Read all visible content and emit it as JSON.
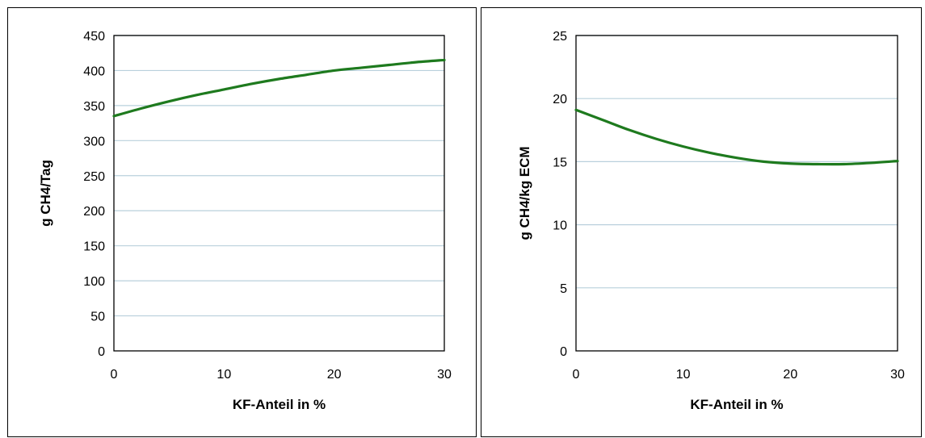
{
  "chart_data": [
    {
      "type": "line",
      "title": "",
      "xlabel": "KF-Anteil in %",
      "ylabel": "g CH4/Tag",
      "xlim": [
        0,
        30
      ],
      "ylim": [
        0,
        450
      ],
      "xticks": [
        "0",
        "10",
        "20",
        "30"
      ],
      "yticks": [
        "0",
        "50",
        "100",
        "150",
        "200",
        "250",
        "300",
        "350",
        "400",
        "450"
      ],
      "grid": "horizontal",
      "legend": "none",
      "series": [
        {
          "color": "#1e7a1e",
          "x": [
            0,
            2.5,
            5,
            7.5,
            10,
            12.5,
            15,
            17.5,
            20,
            22.5,
            25,
            27.5,
            30
          ],
          "y": [
            335,
            346,
            356,
            365,
            373,
            381,
            388,
            394,
            400,
            404,
            408,
            412,
            415
          ]
        }
      ]
    },
    {
      "type": "line",
      "title": "",
      "xlabel": "KF-Anteil in %",
      "ylabel": "g CH4/kg ECM",
      "xlim": [
        0,
        30
      ],
      "ylim": [
        0,
        25
      ],
      "xticks": [
        "0",
        "10",
        "20",
        "30"
      ],
      "yticks": [
        "0",
        "5",
        "10",
        "15",
        "20",
        "25"
      ],
      "grid": "horizontal",
      "legend": "none",
      "series": [
        {
          "color": "#1e7a1e",
          "x": [
            0,
            2.5,
            5,
            7.5,
            10,
            12.5,
            15,
            17.5,
            20,
            22.5,
            25,
            27.5,
            30
          ],
          "y": [
            19.1,
            18.3,
            17.5,
            16.8,
            16.2,
            15.7,
            15.3,
            15.0,
            14.85,
            14.8,
            14.8,
            14.9,
            15.05
          ]
        }
      ]
    }
  ]
}
